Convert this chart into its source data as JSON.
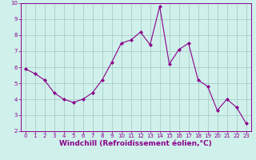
{
  "x": [
    0,
    1,
    2,
    3,
    4,
    5,
    6,
    7,
    8,
    9,
    10,
    11,
    12,
    13,
    14,
    15,
    16,
    17,
    18,
    19,
    20,
    21,
    22,
    23
  ],
  "y": [
    5.9,
    5.6,
    5.2,
    4.4,
    4.0,
    3.8,
    4.0,
    4.4,
    5.2,
    6.3,
    7.5,
    7.7,
    8.2,
    7.4,
    9.8,
    6.2,
    7.1,
    7.5,
    5.2,
    4.8,
    3.3,
    4.0,
    3.5,
    2.5
  ],
  "line_color": "#8B008B",
  "marker": "D",
  "marker_size": 2,
  "bg_color": "#cff0eb",
  "grid_color": "#a0c8c0",
  "xlabel": "Windchill (Refroidissement éolien,°C)",
  "xlabel_color": "#8B008B",
  "xlim": [
    -0.5,
    23.5
  ],
  "ylim": [
    2,
    10
  ],
  "yticks": [
    2,
    3,
    4,
    5,
    6,
    7,
    8,
    9,
    10
  ],
  "xticks": [
    0,
    1,
    2,
    3,
    4,
    5,
    6,
    7,
    8,
    9,
    10,
    11,
    12,
    13,
    14,
    15,
    16,
    17,
    18,
    19,
    20,
    21,
    22,
    23
  ],
  "tick_color": "#8B008B",
  "tick_label_size": 5.0,
  "xlabel_size": 6.5,
  "spine_color": "#8B008B",
  "linewidth": 0.8
}
